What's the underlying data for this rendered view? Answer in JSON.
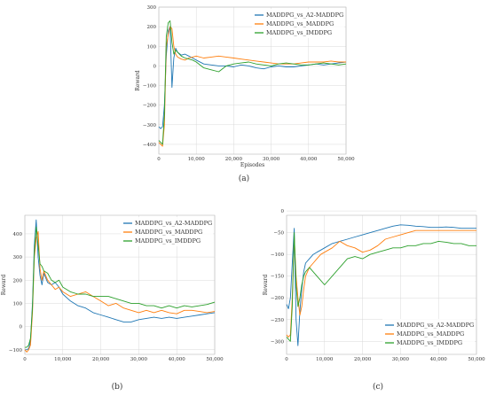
{
  "figure": {
    "colors": {
      "blue": "#1f77b4",
      "orange": "#ff7f0e",
      "green": "#2ca02c"
    }
  },
  "chart_data": [
    {
      "panel": "(a)",
      "type": "line",
      "xlabel": "Episodes",
      "ylabel": "Reward",
      "xlim": [
        0,
        50000
      ],
      "ylim": [
        -450,
        300
      ],
      "x_ticks": [
        "0",
        "10,000",
        "20,000",
        "30,000",
        "40,000",
        "50,000"
      ],
      "y_ticks": [
        "−400",
        "−300",
        "−200",
        "−100",
        "0",
        "100",
        "200",
        "300"
      ],
      "grid": true,
      "legend_position": "top-right",
      "x": [
        0,
        500,
        1000,
        1500,
        2000,
        2500,
        3000,
        3500,
        4000,
        4500,
        5000,
        6000,
        7000,
        8000,
        9000,
        10000,
        12000,
        14000,
        16000,
        18000,
        20000,
        22000,
        24000,
        26000,
        28000,
        30000,
        32000,
        34000,
        36000,
        38000,
        40000,
        42000,
        44000,
        46000,
        48000,
        50000
      ],
      "series": [
        {
          "name": "MADDPG_vs_A2-MADDPG",
          "color": "blue",
          "values": [
            -310,
            -320,
            -310,
            -200,
            50,
            180,
            200,
            -110,
            40,
            90,
            70,
            55,
            60,
            50,
            40,
            30,
            10,
            5,
            0,
            0,
            -5,
            5,
            0,
            -10,
            -15,
            -5,
            0,
            -5,
            -5,
            0,
            5,
            10,
            5,
            10,
            15,
            20
          ]
        },
        {
          "name": "MADDPG_vs_MADDPG",
          "color": "orange",
          "values": [
            -390,
            -400,
            -410,
            -300,
            100,
            160,
            200,
            190,
            100,
            60,
            45,
            35,
            30,
            40,
            45,
            50,
            40,
            45,
            50,
            45,
            40,
            35,
            30,
            25,
            20,
            15,
            10,
            10,
            10,
            15,
            20,
            20,
            20,
            25,
            20,
            20
          ]
        },
        {
          "name": "MADDPG_vs_IMDDPG",
          "color": "green",
          "values": [
            -380,
            -390,
            -400,
            -250,
            150,
            220,
            230,
            120,
            60,
            80,
            70,
            50,
            40,
            35,
            30,
            20,
            -10,
            -20,
            -30,
            0,
            10,
            15,
            20,
            10,
            5,
            0,
            10,
            15,
            10,
            5,
            5,
            10,
            15,
            10,
            5,
            10
          ]
        }
      ]
    },
    {
      "panel": "(b)",
      "type": "line",
      "xlabel": "",
      "ylabel": "Reward",
      "xlim": [
        0,
        50000
      ],
      "ylim": [
        -120,
        480
      ],
      "x_ticks": [
        "0",
        "10,000",
        "20,000",
        "30,000",
        "40,000",
        "50,000"
      ],
      "y_ticks": [
        "−100",
        "0",
        "100",
        "200",
        "300",
        "400"
      ],
      "grid": true,
      "legend_position": "top-right",
      "x": [
        0,
        500,
        1000,
        1500,
        2000,
        2500,
        3000,
        3500,
        4000,
        4500,
        5000,
        6000,
        7000,
        8000,
        9000,
        10000,
        12000,
        14000,
        16000,
        18000,
        20000,
        22000,
        24000,
        26000,
        28000,
        30000,
        32000,
        34000,
        36000,
        38000,
        40000,
        42000,
        44000,
        46000,
        48000,
        50000
      ],
      "series": [
        {
          "name": "MADDPG_vs_A2-MADDPG",
          "color": "blue",
          "values": [
            -100,
            -100,
            -95,
            -60,
            100,
            350,
            460,
            300,
            220,
            180,
            230,
            190,
            180,
            190,
            170,
            140,
            110,
            90,
            80,
            60,
            50,
            40,
            30,
            20,
            20,
            30,
            35,
            40,
            35,
            40,
            35,
            40,
            45,
            50,
            55,
            60
          ]
        },
        {
          "name": "MADDPG_vs_MADDPG",
          "color": "orange",
          "values": [
            -100,
            -110,
            -100,
            -80,
            60,
            300,
            380,
            410,
            250,
            200,
            240,
            200,
            180,
            160,
            170,
            150,
            130,
            140,
            150,
            130,
            110,
            90,
            100,
            80,
            70,
            60,
            70,
            60,
            70,
            60,
            55,
            70,
            70,
            65,
            60,
            65
          ]
        },
        {
          "name": "MADDPG_vs_IMDDPG",
          "color": "green",
          "values": [
            -90,
            -90,
            -80,
            -50,
            80,
            320,
            430,
            350,
            270,
            260,
            240,
            230,
            200,
            190,
            200,
            170,
            150,
            140,
            140,
            130,
            130,
            130,
            120,
            110,
            100,
            100,
            90,
            90,
            80,
            90,
            80,
            90,
            85,
            90,
            95,
            105
          ]
        }
      ]
    },
    {
      "panel": "(c)",
      "type": "line",
      "xlabel": "",
      "ylabel": "Reward",
      "xlim": [
        0,
        50000
      ],
      "ylim": [
        -330,
        -10
      ],
      "x_ticks": [
        "0",
        "10,000",
        "20,000",
        "30,000",
        "40,000",
        "50,000"
      ],
      "y_ticks": [
        "−300",
        "−250",
        "−200",
        "−150",
        "−100",
        "−50",
        "0"
      ],
      "grid": true,
      "legend_position": "bottom-right",
      "x": [
        0,
        500,
        1000,
        1500,
        2000,
        2500,
        3000,
        3500,
        4000,
        4500,
        5000,
        6000,
        7000,
        8000,
        9000,
        10000,
        12000,
        14000,
        16000,
        18000,
        20000,
        22000,
        24000,
        26000,
        28000,
        30000,
        32000,
        34000,
        36000,
        38000,
        40000,
        42000,
        44000,
        46000,
        48000,
        50000
      ],
      "series": [
        {
          "name": "MADDPG_vs_A2-MADDPG",
          "color": "blue",
          "values": [
            -215,
            -225,
            -200,
            -120,
            -40,
            -250,
            -310,
            -230,
            -180,
            -140,
            -120,
            -110,
            -100,
            -95,
            -90,
            -85,
            -75,
            -70,
            -65,
            -60,
            -55,
            -50,
            -45,
            -40,
            -35,
            -32,
            -33,
            -35,
            -36,
            -38,
            -38,
            -37,
            -38,
            -40,
            -40,
            -40
          ]
        },
        {
          "name": "MADDPG_vs_MADDPG",
          "color": "orange",
          "values": [
            -285,
            -290,
            -285,
            -200,
            -60,
            -150,
            -200,
            -240,
            -220,
            -180,
            -150,
            -130,
            -120,
            -110,
            -100,
            -95,
            -85,
            -70,
            -80,
            -85,
            -95,
            -90,
            -80,
            -65,
            -60,
            -55,
            -50,
            -45,
            -45,
            -45,
            -45,
            -45,
            -45,
            -45,
            -45,
            -45
          ]
        },
        {
          "name": "MADDPG_vs_IMDDPG",
          "color": "green",
          "values": [
            -290,
            -295,
            -300,
            -220,
            -50,
            -170,
            -220,
            -200,
            -170,
            -150,
            -140,
            -130,
            -140,
            -150,
            -160,
            -170,
            -150,
            -130,
            -110,
            -105,
            -110,
            -100,
            -95,
            -90,
            -85,
            -85,
            -80,
            -80,
            -75,
            -75,
            -70,
            -72,
            -75,
            -75,
            -80,
            -80
          ]
        }
      ]
    }
  ]
}
